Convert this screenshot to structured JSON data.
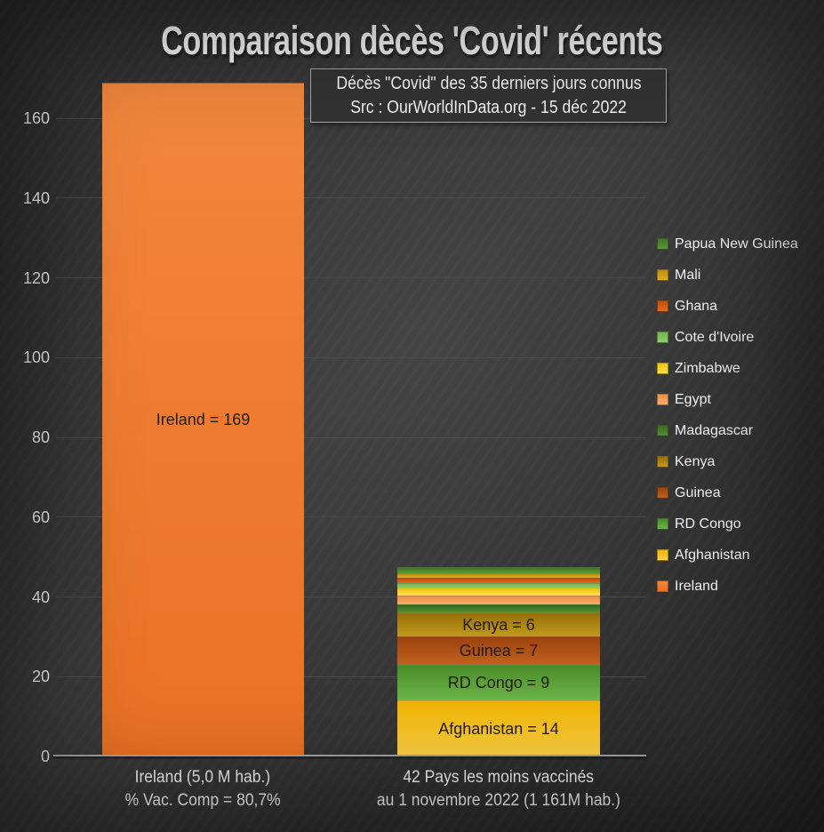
{
  "title": "Comparaison dècès 'Covid' récents",
  "subtitle": {
    "line1": "Décès \"Covid\" des 35 derniers jours connus",
    "line2": "Src : OurWorldInData.org - 15 déc 2022"
  },
  "chart_data": {
    "type": "bar",
    "stacked": true,
    "grid": true,
    "legend_position": "right",
    "background": "dark-gray-gradient",
    "ylim": [
      0,
      175
    ],
    "yticks": [
      0,
      20,
      40,
      60,
      80,
      100,
      120,
      140,
      160
    ],
    "categories": [
      {
        "line1": "Ireland (5,0 M hab.)",
        "line2": "% Vac. Comp = 80,7%"
      },
      {
        "line1": "42 Pays les moins vaccinés",
        "line2": "au 1 novembre 2022 (1 161M hab.)"
      }
    ],
    "series": [
      {
        "name": "Ireland",
        "values": [
          169,
          0
        ],
        "label": "Ireland = 169",
        "color": "#ED7D31",
        "color_top": "#F2873D",
        "color_bottom": "#EA7123"
      },
      {
        "name": "Afghanistan",
        "values": [
          0,
          14
        ],
        "label": "Afghanistan = 14",
        "color": "#FFC000",
        "color_top": "#F0B501",
        "color_bottom": "#FFD145"
      },
      {
        "name": "RD Congo",
        "values": [
          0,
          9
        ],
        "label": "RD Congo = 9",
        "color": "#5BA839",
        "color_top": "#4A8C28",
        "color_bottom": "#6DB54B"
      },
      {
        "name": "Guinea",
        "values": [
          0,
          7
        ],
        "label": "Guinea = 7",
        "color": "#B34E14",
        "color_top": "#9C430E",
        "color_bottom": "#C2601F"
      },
      {
        "name": "Kenya",
        "values": [
          0,
          6
        ],
        "label": "Kenya = 6",
        "color": "#AD8210",
        "color_top": "#96700A",
        "color_bottom": "#C2991D"
      },
      {
        "name": "Madagascar",
        "values": [
          0,
          2.2
        ],
        "estimated": true,
        "color": "#46782A",
        "color_top": "#3B6B1E",
        "color_bottom": "#568C36"
      },
      {
        "name": "Egypt",
        "values": [
          0,
          2.2
        ],
        "estimated": true,
        "color": "#F29B55",
        "color_top": "#EC8F44",
        "color_bottom": "#F8AE6E"
      },
      {
        "name": "Zimbabwe",
        "values": [
          0,
          1.9
        ],
        "estimated": true,
        "color": "#F5CE1C",
        "color_top": "#EEC30F",
        "color_bottom": "#FFDD4A"
      },
      {
        "name": "Cote d'Ivoire",
        "values": [
          0,
          1.1
        ],
        "estimated": true,
        "color": "#7CC35C",
        "color_top": "#72B64C",
        "color_bottom": "#90CC6C"
      },
      {
        "name": "Ghana",
        "values": [
          0,
          1.5
        ],
        "estimated": true,
        "color": "#D85C12",
        "color_top": "#C24D09",
        "color_bottom": "#E16C1E"
      },
      {
        "name": "Mali",
        "values": [
          0,
          1.1
        ],
        "estimated": true,
        "color": "#CE9D12",
        "color_top": "#BC8D0B",
        "color_bottom": "#DCAD21"
      },
      {
        "name": "Papua New Guinea",
        "values": [
          0,
          1.6
        ],
        "estimated": true,
        "color": "#4F8A2F",
        "color_top": "#407425",
        "color_bottom": "#5C9A3C"
      }
    ],
    "legend_order": [
      "Papua New Guinea",
      "Mali",
      "Ghana",
      "Cote d'Ivoire",
      "Zimbabwe",
      "Egypt",
      "Madagascar",
      "Kenya",
      "Guinea",
      "RD Congo",
      "Afghanistan",
      "Ireland"
    ]
  }
}
